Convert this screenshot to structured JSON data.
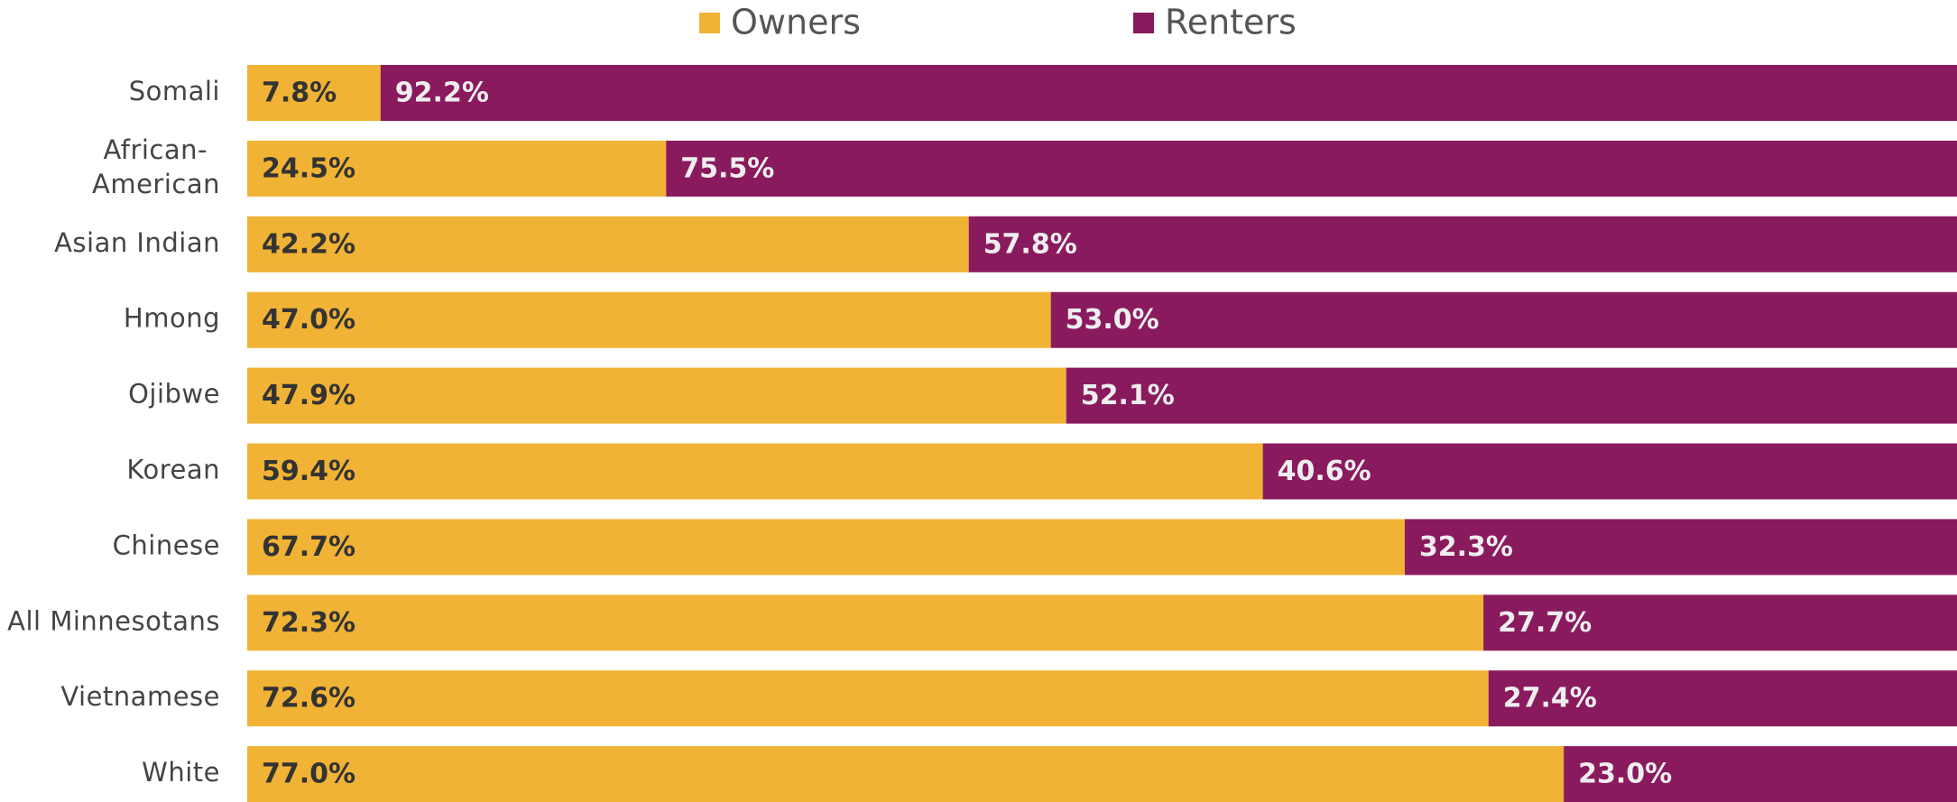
{
  "chart_data": {
    "type": "stacked-bar",
    "orientation": "horizontal",
    "categories": [
      "Somali",
      "African-American",
      "Asian Indian",
      "Hmong",
      "Ojibwe",
      "Korean",
      "Chinese",
      "All Minnesotans",
      "Vietnamese",
      "White"
    ],
    "series": [
      {
        "name": "Owners",
        "color": "#f0b335",
        "label_color": "#333333",
        "values": [
          7.8,
          24.5,
          42.2,
          47.0,
          47.9,
          59.4,
          67.7,
          72.3,
          72.6,
          77.0
        ],
        "value_labels": [
          "7.8%",
          "24.5%",
          "42.2%",
          "47.0%",
          "47.9%",
          "59.4%",
          "67.7%",
          "72.3%",
          "72.6%",
          "77.0%"
        ]
      },
      {
        "name": "Renters",
        "color": "#8a1a5e",
        "label_color": "#eeeeee",
        "values": [
          92.2,
          75.5,
          57.8,
          53.0,
          52.1,
          40.6,
          32.3,
          27.7,
          27.4,
          23.0
        ],
        "value_labels": [
          "92.2%",
          "75.5%",
          "57.8%",
          "53.0%",
          "52.1%",
          "40.6%",
          "32.3%",
          "27.7%",
          "27.4%",
          "23.0%"
        ]
      }
    ],
    "xlim": [
      0,
      100
    ],
    "legend": "top"
  }
}
